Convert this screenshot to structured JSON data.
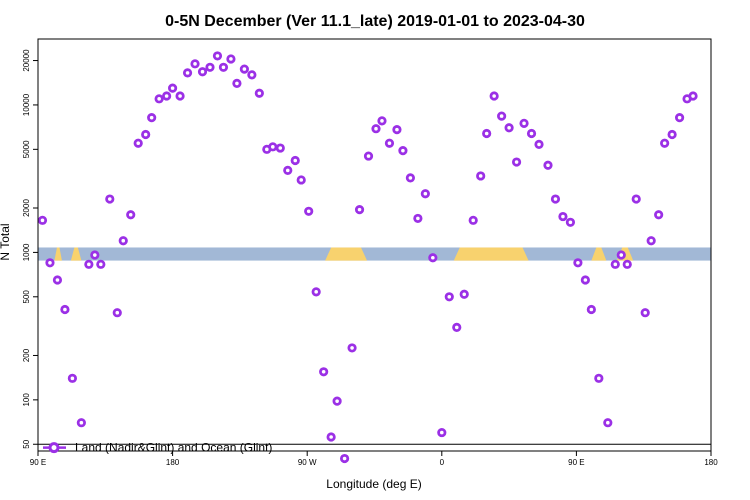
{
  "chart_data": {
    "type": "scatter",
    "title": "0-5N December (Ver 11.1_late)   2019-01-01 to 2023-04-30",
    "xlabel": "Longitude (deg E)",
    "ylabel": "N Total",
    "x_scale": "longitude",
    "y_scale": "log",
    "xlim": [
      90,
      540
    ],
    "ylim": [
      45,
      28000
    ],
    "x_ticks": [
      {
        "value": 90,
        "label": "90 E"
      },
      {
        "value": 180,
        "label": "180"
      },
      {
        "value": 270,
        "label": "90 W"
      },
      {
        "value": 360,
        "label": "0"
      },
      {
        "value": 450,
        "label": "90 E"
      },
      {
        "value": 540,
        "label": "180"
      }
    ],
    "y_ticks": [
      {
        "value": 50,
        "label": "50"
      },
      {
        "value": 100,
        "label": "100"
      },
      {
        "value": 200,
        "label": "200"
      },
      {
        "value": 500,
        "label": "500"
      },
      {
        "value": 1000,
        "label": "1000"
      },
      {
        "value": 2000,
        "label": "2000"
      },
      {
        "value": 5000,
        "label": "5000"
      },
      {
        "value": 10000,
        "label": "10000"
      },
      {
        "value": 20000,
        "label": "20000"
      }
    ],
    "series": [
      {
        "name": "Land (Nadir&Glint) and Ocean (Glint)",
        "color": "#9b30e6",
        "marker": "circle",
        "points": [
          [
            93,
            1650
          ],
          [
            98,
            850
          ],
          [
            103,
            650
          ],
          [
            108,
            410
          ],
          [
            113,
            140
          ],
          [
            119,
            70
          ],
          [
            124,
            830
          ],
          [
            128,
            960
          ],
          [
            132,
            830
          ],
          [
            138,
            2300
          ],
          [
            143,
            390
          ],
          [
            147,
            1200
          ],
          [
            152,
            1800
          ],
          [
            157,
            5500
          ],
          [
            162,
            6300
          ],
          [
            166,
            8200
          ],
          [
            171,
            11000
          ],
          [
            176,
            11500
          ],
          [
            180,
            13000
          ],
          [
            185,
            11500
          ],
          [
            190,
            16500
          ],
          [
            195,
            19000
          ],
          [
            200,
            16800
          ],
          [
            205,
            18000
          ],
          [
            210,
            21500
          ],
          [
            214,
            18000
          ],
          [
            219,
            20500
          ],
          [
            223,
            14000
          ],
          [
            228,
            17500
          ],
          [
            233,
            16000
          ],
          [
            238,
            12000
          ],
          [
            243,
            5000
          ],
          [
            247,
            5200
          ],
          [
            252,
            5100
          ],
          [
            257,
            3600
          ],
          [
            262,
            4200
          ],
          [
            266,
            3100
          ],
          [
            271,
            1900
          ],
          [
            276,
            540
          ],
          [
            281,
            155
          ],
          [
            286,
            56
          ],
          [
            290,
            98
          ],
          [
            295,
            40
          ],
          [
            300,
            225
          ],
          [
            305,
            1950
          ],
          [
            311,
            4500
          ],
          [
            316,
            6900
          ],
          [
            320,
            7800
          ],
          [
            325,
            5500
          ],
          [
            330,
            6800
          ],
          [
            334,
            4900
          ],
          [
            339,
            3200
          ],
          [
            344,
            1700
          ],
          [
            349,
            2500
          ],
          [
            354,
            920
          ],
          [
            360,
            60
          ],
          [
            365,
            500
          ],
          [
            370,
            310
          ],
          [
            375,
            520
          ],
          [
            381,
            1650
          ],
          [
            386,
            3300
          ],
          [
            390,
            6400
          ],
          [
            395,
            11500
          ],
          [
            400,
            8400
          ],
          [
            405,
            7000
          ],
          [
            410,
            4100
          ],
          [
            415,
            7500
          ],
          [
            420,
            6400
          ],
          [
            425,
            5400
          ],
          [
            431,
            3900
          ],
          [
            436,
            2300
          ],
          [
            441,
            1750
          ],
          [
            446,
            1600
          ],
          [
            451,
            850
          ],
          [
            456,
            650
          ],
          [
            460,
            410
          ],
          [
            465,
            140
          ],
          [
            471,
            70
          ],
          [
            476,
            830
          ],
          [
            480,
            960
          ],
          [
            484,
            830
          ],
          [
            490,
            2300
          ],
          [
            496,
            390
          ],
          [
            500,
            1200
          ],
          [
            505,
            1800
          ],
          [
            509,
            5500
          ],
          [
            514,
            6300
          ],
          [
            519,
            8200
          ],
          [
            524,
            11000
          ],
          [
            528,
            11500
          ]
        ]
      }
    ],
    "surface_band": {
      "value_low": 880,
      "value_high": 1080,
      "ocean_color": "#a2b8d6",
      "land_color": "#f8d26e",
      "land_ranges": [
        [
          101,
          106
        ],
        [
          112,
          119
        ],
        [
          282,
          310
        ],
        [
          368,
          418
        ],
        [
          460,
          470
        ],
        [
          477,
          488
        ]
      ]
    },
    "legend": {
      "placement": "bottom-left"
    }
  }
}
